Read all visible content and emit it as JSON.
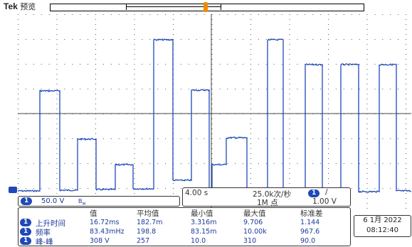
{
  "header": {
    "brand": "Tek",
    "mode": "预览"
  },
  "channel": {
    "number": "1",
    "scale": "50.0 V",
    "bandwidth_icon": "bw-limit-icon",
    "color": "#1f48b8"
  },
  "horizontal": {
    "time_div": "4.00 s",
    "sample_rate": "25.0k次/秒",
    "record_length": "1M 点",
    "trigger_source": "1",
    "trigger_slope": "/",
    "trigger_level": "1.00 V"
  },
  "measurements": {
    "headers": [
      "值",
      "平均值",
      "最小值",
      "最大值",
      "标准差"
    ],
    "rows": [
      {
        "source": "1",
        "name": "上升时间",
        "value": "16.72ms",
        "mean": "182.7m",
        "min": "3.316m",
        "max": "9.706",
        "std": "1.144"
      },
      {
        "source": "1",
        "name": "频率",
        "value": "83.43mHz",
        "mean": "198.8",
        "min": "83.15m",
        "max": "10.00k",
        "std": "967.6"
      },
      {
        "source": "1",
        "name": "峰-峰",
        "value": "308 V",
        "mean": "257",
        "min": "10.0",
        "max": "310",
        "std": "90.0"
      }
    ]
  },
  "datetime": {
    "date": "6 1月 2022",
    "time": "08:12:40"
  },
  "colors": {
    "trace": "#1f48b8",
    "grid": "#555555",
    "trigger_marker": "#f08a00"
  }
}
